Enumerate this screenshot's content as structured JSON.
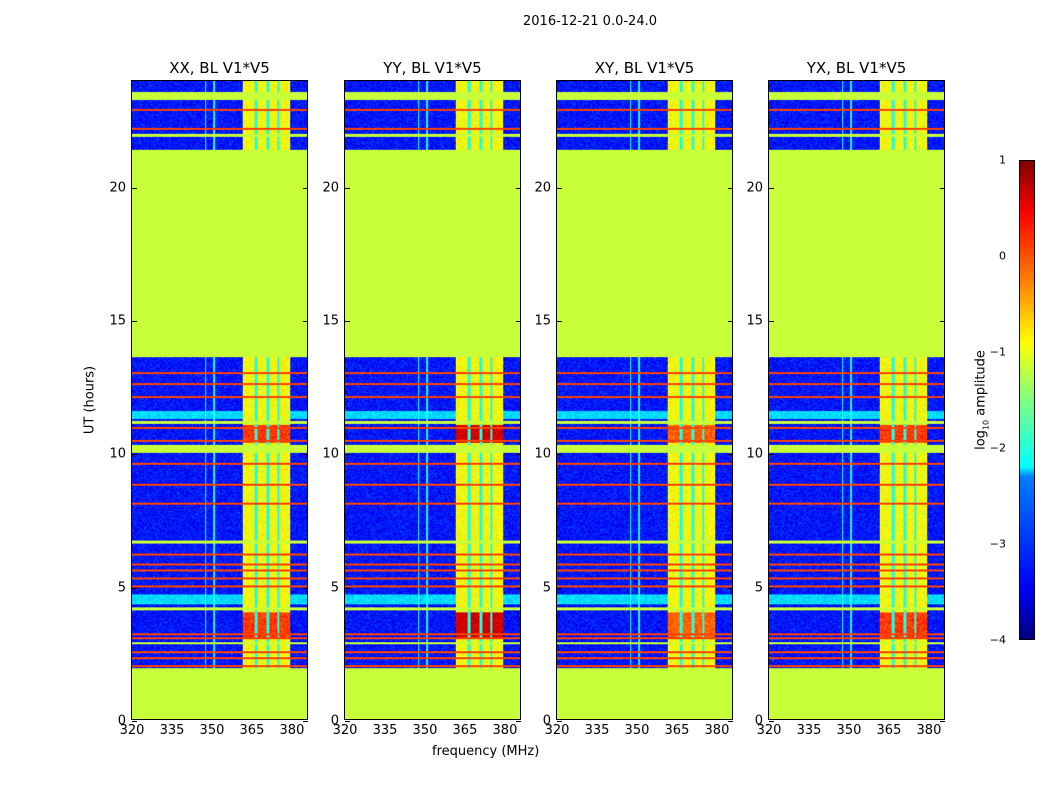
{
  "chart_data": {
    "type": "heatmap",
    "title": "2016-12-21 0.0-24.0",
    "xlabel": "frequency (MHz)",
    "ylabel": "UT (hours)",
    "xlim": [
      320,
      386.4
    ],
    "ylim": [
      0,
      24
    ],
    "xticks": [
      "320",
      "335",
      "350",
      "365",
      "380"
    ],
    "yticks": [
      "0",
      "5",
      "10",
      "15",
      "20"
    ],
    "colorbar": {
      "label_prefix": "log",
      "label_sub": "10",
      "label_suffix": " amplitude",
      "range": [
        -4,
        1
      ],
      "ticks": [
        "1",
        "0",
        "−1",
        "−2",
        "−3",
        "−4"
      ],
      "colormap": "jet"
    },
    "panels": [
      {
        "title": "XX, BL V1*V5",
        "rfi_peak": 0.1
      },
      {
        "title": "YY, BL V1*V5",
        "rfi_peak": 0.6
      },
      {
        "title": "XY, BL V1*V5",
        "rfi_peak": -0.1
      },
      {
        "title": "YX, BL V1*V5",
        "rfi_peak": 0.1
      }
    ],
    "noise_level": -3.3,
    "flagged_value": -1.15,
    "flagged_time_ranges": [
      [
        0,
        1.9
      ],
      [
        13.6,
        21.4
      ],
      [
        10.0,
        10.3
      ],
      [
        4.1,
        4.2
      ],
      [
        2.8,
        2.9
      ],
      [
        11.1,
        11.2
      ],
      [
        6.6,
        6.7
      ],
      [
        23.3,
        23.6
      ],
      [
        21.9,
        22.0
      ]
    ],
    "rfi_lines_hours": [
      2.0,
      2.3,
      2.5,
      3.05,
      3.2,
      5.0,
      5.3,
      5.6,
      5.8,
      6.2,
      8.1,
      8.8,
      9.6,
      10.45,
      10.95,
      12.1,
      12.6,
      13.0,
      22.2,
      22.9
    ],
    "diffuse_time_ranges": [
      [
        4.3,
        4.7
      ],
      [
        11.3,
        11.6
      ]
    ],
    "strong_rfi_time_ranges": [
      [
        3.0,
        4.0
      ],
      [
        10.4,
        11.05
      ]
    ],
    "rfi_band_MHz": [
      362,
      380
    ],
    "rfi_gaps_MHz": [
      367,
      371.5,
      375.5
    ]
  }
}
